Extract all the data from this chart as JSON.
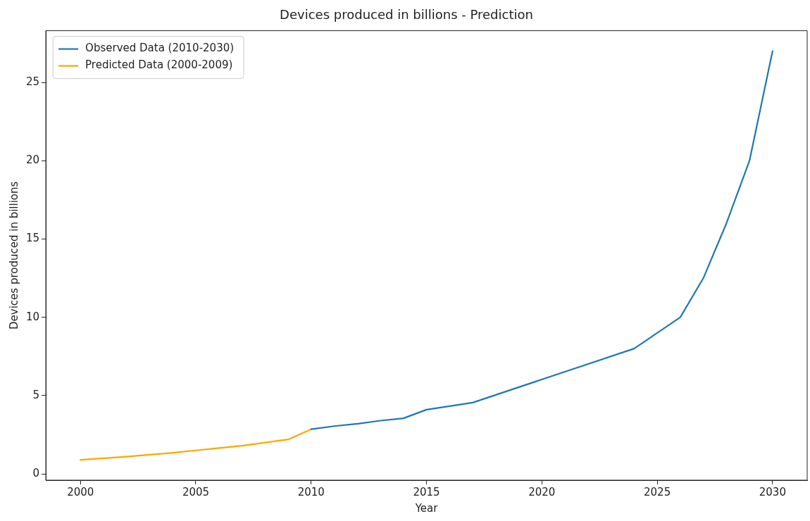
{
  "chart_data": {
    "type": "line",
    "title": "Devices produced in billions - Prediction",
    "xlabel": "Year",
    "ylabel": "Devices produced in billions",
    "series": [
      {
        "name": "Observed Data (2010-2030)",
        "color": "#1f77b4",
        "x": [
          2010,
          2011,
          2012,
          2013,
          2014,
          2015,
          2017,
          2024,
          2026,
          2027,
          2028,
          2029,
          2030
        ],
        "values": [
          2.85,
          3.05,
          3.2,
          3.4,
          3.55,
          4.1,
          4.55,
          8.0,
          10.0,
          12.5,
          16.0,
          20.0,
          27.0
        ]
      },
      {
        "name": "Predicted Data (2000-2009)",
        "color": "#ffa500",
        "x": [
          2000,
          2001,
          2002,
          2003,
          2004,
          2005,
          2006,
          2007,
          2008,
          2009,
          2010
        ],
        "values": [
          0.9,
          1.0,
          1.1,
          1.22,
          1.35,
          1.5,
          1.65,
          1.8,
          2.0,
          2.2,
          2.85
        ]
      }
    ],
    "xlim": [
      1998.5,
      2031.5
    ],
    "xticks": [
      2000,
      2005,
      2010,
      2015,
      2020,
      2025,
      2030
    ],
    "ylim": [
      -0.4,
      28.3
    ],
    "yticks": [
      0,
      5,
      10,
      15,
      20,
      25
    ],
    "grid": false,
    "legend": "top left",
    "marker": "none",
    "line_style": "solid"
  }
}
